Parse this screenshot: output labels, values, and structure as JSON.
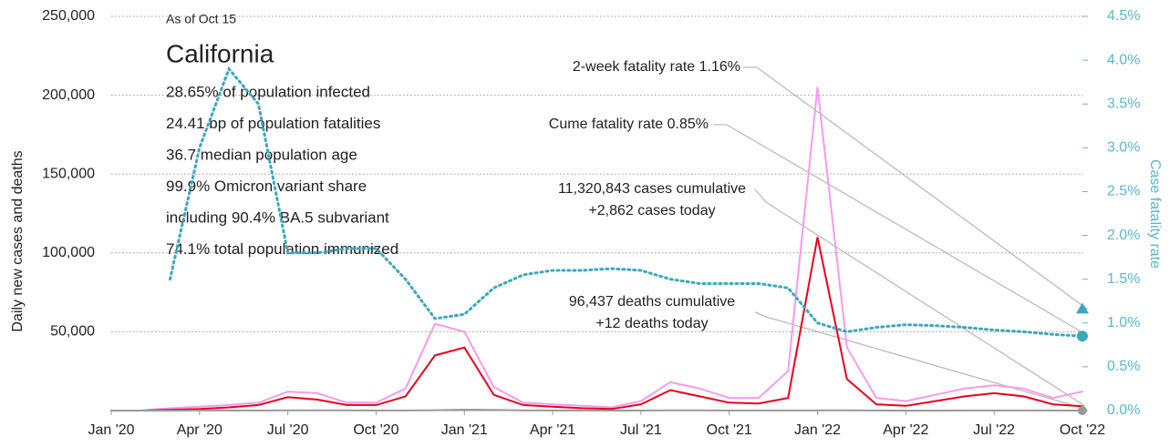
{
  "chart_data": {
    "type": "line",
    "info": {
      "as_of": "As of Oct 15",
      "region": "California",
      "lines": [
        "28.65% of population infected",
        "24.41 bp of population fatalities",
        "36.7 median population age",
        "99.9% Omicron variant share",
        "including 90.4% BA.5 subvariant",
        "74.1% total population immunized"
      ]
    },
    "ylabel": "Daily new cases and deaths",
    "y2label": "Case fatality rate",
    "x": [
      "2020-01",
      "2020-02",
      "2020-03",
      "2020-04",
      "2020-05",
      "2020-06",
      "2020-07",
      "2020-08",
      "2020-09",
      "2020-10",
      "2020-11",
      "2020-12",
      "2021-01",
      "2021-02",
      "2021-03",
      "2021-04",
      "2021-05",
      "2021-06",
      "2021-07",
      "2021-08",
      "2021-09",
      "2021-10",
      "2021-11",
      "2021-12",
      "2022-01",
      "2022-02",
      "2022-03",
      "2022-04",
      "2022-05",
      "2022-06",
      "2022-07",
      "2022-08",
      "2022-09",
      "2022-10"
    ],
    "xticks": [
      {
        "value": "2020-01",
        "label": "Jan '20"
      },
      {
        "value": "2020-04",
        "label": "Apr '20"
      },
      {
        "value": "2020-07",
        "label": "Jul '20"
      },
      {
        "value": "2020-10",
        "label": "Oct '20"
      },
      {
        "value": "2021-01",
        "label": "Jan '21"
      },
      {
        "value": "2021-04",
        "label": "Apr '21"
      },
      {
        "value": "2021-07",
        "label": "Jul '21"
      },
      {
        "value": "2021-10",
        "label": "Oct '21"
      },
      {
        "value": "2022-01",
        "label": "Jan '22"
      },
      {
        "value": "2022-04",
        "label": "Apr '22"
      },
      {
        "value": "2022-07",
        "label": "Jul '22"
      },
      {
        "value": "2022-10",
        "label": "Oct '22"
      }
    ],
    "ylim": [
      0,
      250000
    ],
    "yticks": [
      {
        "value": 50000,
        "label": "50,000"
      },
      {
        "value": 100000,
        "label": "100,000"
      },
      {
        "value": 150000,
        "label": "150,000"
      },
      {
        "value": 200000,
        "label": "200,000"
      },
      {
        "value": 250000,
        "label": "250,000"
      }
    ],
    "y2lim": [
      0,
      4.5
    ],
    "y2ticks": [
      {
        "value": 0,
        "label": "0.0%"
      },
      {
        "value": 0.5,
        "label": "0.5%"
      },
      {
        "value": 1,
        "label": "1.0%"
      },
      {
        "value": 1.5,
        "label": "1.5%"
      },
      {
        "value": 2,
        "label": "2.0%"
      },
      {
        "value": 2.5,
        "label": "2.5%"
      },
      {
        "value": 3,
        "label": "3.0%"
      },
      {
        "value": 3.5,
        "label": "3.5%"
      },
      {
        "value": 4,
        "label": "4.0%"
      },
      {
        "value": 4.5,
        "label": "4.5%"
      }
    ],
    "grid": true,
    "series": [
      {
        "color": "#f59af0",
        "values": [
          0,
          0,
          1500,
          2500,
          3500,
          5000,
          12000,
          11000,
          5000,
          5000,
          14000,
          55000,
          50000,
          15000,
          5000,
          4000,
          3000,
          2000,
          6000,
          18000,
          14000,
          8000,
          8000,
          25000,
          205000,
          40000,
          8000,
          6000,
          10000,
          14000,
          16000,
          14000,
          8000,
          12000
        ]
      },
      {
        "color": "#e8001c",
        "values": [
          0,
          0,
          500,
          1000,
          2000,
          3500,
          8500,
          7000,
          3500,
          3500,
          9000,
          35000,
          40000,
          10000,
          3500,
          2500,
          1500,
          1000,
          4000,
          13000,
          9000,
          5000,
          4500,
          8000,
          110000,
          20000,
          4000,
          3000,
          6000,
          9000,
          11000,
          9000,
          4000,
          2800
        ]
      },
      {
        "color": "#999999",
        "values": [
          0,
          0,
          20,
          80,
          80,
          70,
          120,
          140,
          110,
          60,
          50,
          250,
          550,
          400,
          150,
          40,
          30,
          20,
          30,
          100,
          120,
          60,
          40,
          40,
          120,
          200,
          70,
          20,
          20,
          30,
          40,
          40,
          30,
          12
        ]
      },
      {
        "color": "#3aa8bd",
        "axis": "y2",
        "dashed": true,
        "values": [
          null,
          null,
          1.5,
          3.0,
          3.9,
          3.5,
          1.8,
          1.8,
          1.85,
          1.85,
          1.5,
          1.05,
          1.1,
          1.4,
          1.55,
          1.6,
          1.6,
          1.62,
          1.6,
          1.5,
          1.45,
          1.45,
          1.45,
          1.4,
          1.0,
          0.9,
          0.95,
          0.98,
          0.97,
          0.95,
          0.92,
          0.9,
          0.87,
          0.85
        ]
      }
    ],
    "markers": [
      {
        "label": "2-week fatality rate 1.16%",
        "value": 1.16,
        "shape": "triangle",
        "color": "#3aa8bd"
      },
      {
        "label": "Cume fatality rate 0.85%",
        "value": 0.85,
        "shape": "circle",
        "color": "#3aa8bd"
      }
    ],
    "annotations": [
      {
        "lines": [
          "11,320,843 cases cumulative",
          "+2,862 cases today"
        ]
      },
      {
        "lines": [
          "96,437 deaths cumulative",
          "+12 deaths today"
        ]
      }
    ]
  }
}
